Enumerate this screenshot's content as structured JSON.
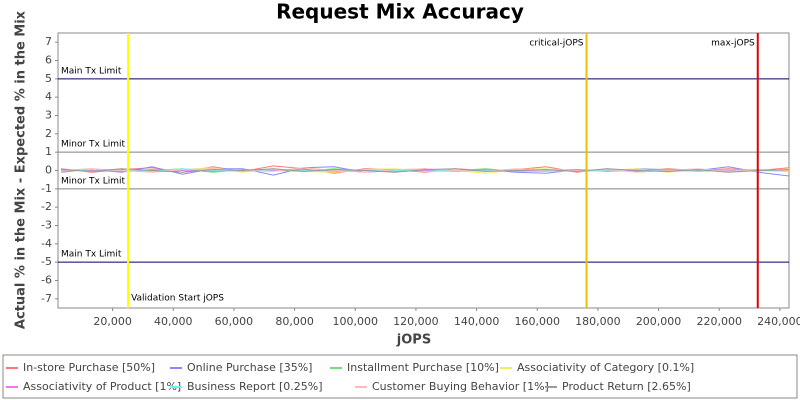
{
  "chart_data": {
    "type": "line",
    "title": "Request Mix Accuracy",
    "x_label": "jOPS",
    "y_label": "Actual % in the Mix - Expected % in the Mix",
    "xlim": [
      2000,
      243000
    ],
    "ylim": [
      -7.5,
      7.5
    ],
    "xticks": [
      {
        "value": 20000,
        "label": "20,000"
      },
      {
        "value": 40000,
        "label": "40,000"
      },
      {
        "value": 60000,
        "label": "60,000"
      },
      {
        "value": 80000,
        "label": "80,000"
      },
      {
        "value": 100000,
        "label": "100,000"
      },
      {
        "value": 120000,
        "label": "120,000"
      },
      {
        "value": 140000,
        "label": "140,000"
      },
      {
        "value": 160000,
        "label": "160,000"
      },
      {
        "value": 180000,
        "label": "180,000"
      },
      {
        "value": 200000,
        "label": "200,000"
      },
      {
        "value": 220000,
        "label": "220,000"
      },
      {
        "value": 240000,
        "label": "240,000"
      }
    ],
    "yticks": [
      -7,
      -6,
      -5,
      -4,
      -3,
      -2,
      -1,
      0,
      1,
      2,
      3,
      4,
      5,
      6,
      7
    ],
    "h_markers": [
      {
        "label": "Main Tx Limit",
        "value": 5,
        "color": "#000066"
      },
      {
        "label": "Minor Tx Limit",
        "value": 1,
        "color": "#808080"
      },
      {
        "label": "Minor Tx Limit",
        "value": -1,
        "color": "#808080"
      },
      {
        "label": "Main Tx Limit",
        "value": -5,
        "color": "#000066"
      }
    ],
    "v_markers": [
      {
        "label": "Validation Start jOPS",
        "value": 25100,
        "color": "#ffff00",
        "label_position": "bottom-right"
      },
      {
        "label": "critical-jOPS",
        "value": 176250,
        "color": "#e6c200",
        "label_position": "top-left"
      },
      {
        "label": "max-jOPS",
        "value": 232700,
        "color": "#e00000",
        "label_position": "top-left"
      }
    ],
    "x": [
      3000,
      13000,
      23000,
      33000,
      43000,
      53000,
      63000,
      73000,
      83000,
      93000,
      103000,
      113000,
      123000,
      133000,
      143000,
      153000,
      163000,
      173000,
      183000,
      193000,
      203000,
      213000,
      223000,
      233000,
      243000
    ],
    "series": [
      {
        "name": "In-store Purchase [50%]",
        "color": "#ff7777",
        "values": [
          0.1,
          -0.1,
          0.05,
          0.15,
          -0.1,
          0.2,
          -0.05,
          0.25,
          0.1,
          -0.15,
          0.1,
          0.05,
          -0.1,
          0.1,
          0.0,
          0.05,
          0.2,
          -0.1,
          0.1,
          -0.05,
          0.1,
          0.0,
          0.1,
          0.0,
          0.15
        ]
      },
      {
        "name": "Online Purchase [35%]",
        "color": "#8888ff",
        "values": [
          -0.1,
          0.05,
          -0.1,
          0.2,
          -0.2,
          0.1,
          0.1,
          -0.25,
          0.15,
          0.2,
          -0.1,
          0.0,
          0.1,
          -0.05,
          0.05,
          -0.1,
          -0.15,
          0.05,
          -0.05,
          0.1,
          0.05,
          0.0,
          0.2,
          -0.1,
          -0.3
        ]
      },
      {
        "name": "Installment Purchase [10%]",
        "color": "#77dd77",
        "values": [
          0.0,
          0.1,
          -0.05,
          0.0,
          0.1,
          -0.1,
          0.05,
          0.0,
          -0.05,
          0.1,
          0.0,
          -0.05,
          0.05,
          0.0,
          0.1,
          -0.05,
          0.0,
          0.05,
          -0.05,
          0.0,
          0.05,
          -0.05,
          0.0,
          0.05,
          0.0
        ]
      },
      {
        "name": "Associativity of Category [0.1%]",
        "color": "#eeee66",
        "values": [
          0.0,
          -0.05,
          0.1,
          -0.1,
          0.05,
          0.15,
          -0.1,
          0.1,
          -0.05,
          -0.1,
          0.05,
          0.1,
          -0.05,
          0.0,
          -0.15,
          0.05,
          0.1,
          -0.05,
          0.0,
          0.1,
          -0.1,
          0.05,
          0.0,
          -0.05,
          0.1
        ]
      },
      {
        "name": "Associativity of Product [1%]",
        "color": "#ee77ee",
        "values": [
          0.05,
          0.0,
          -0.05,
          0.05,
          0.0,
          -0.05,
          0.05,
          0.0,
          0.05,
          -0.05,
          0.0,
          0.05,
          0.0,
          -0.05,
          0.05,
          0.0,
          -0.05,
          0.05,
          0.0,
          0.0,
          -0.05,
          0.05,
          0.0,
          0.05,
          0.0
        ]
      },
      {
        "name": "Business Report [0.25%]",
        "color": "#77eeee",
        "values": [
          0.0,
          0.05,
          0.0,
          -0.05,
          0.1,
          0.0,
          -0.05,
          0.05,
          0.0,
          -0.05,
          0.05,
          0.0,
          0.05,
          -0.05,
          0.0,
          0.05,
          0.0,
          -0.05,
          0.0,
          0.05,
          0.0,
          -0.05,
          0.05,
          0.0,
          -0.05
        ]
      },
      {
        "name": "Customer Buying Behavior [1%]",
        "color": "#ffbbbb",
        "values": [
          -0.05,
          0.1,
          0.0,
          -0.1,
          0.05,
          0.1,
          0.0,
          -0.05,
          0.15,
          0.0,
          -0.1,
          0.05,
          0.1,
          0.0,
          -0.05,
          0.1,
          -0.05,
          0.0,
          0.05,
          -0.1,
          0.0,
          0.1,
          -0.05,
          0.05,
          0.0
        ]
      },
      {
        "name": "Product Return [2.65%]",
        "color": "#999999",
        "values": [
          0.05,
          -0.05,
          0.1,
          0.0,
          -0.1,
          0.05,
          0.0,
          0.1,
          -0.05,
          0.05,
          0.0,
          -0.1,
          0.05,
          0.1,
          -0.05,
          0.0,
          0.05,
          -0.05,
          0.1,
          0.0,
          -0.05,
          0.05,
          -0.1,
          0.0,
          0.05
        ]
      }
    ]
  }
}
